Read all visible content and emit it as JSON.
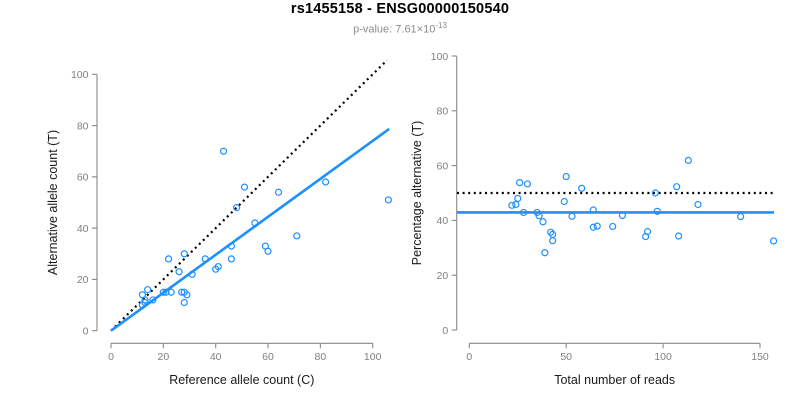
{
  "header": {
    "title": "rs1455158 - ENSG00000150540",
    "pvalue_prefix": "p-value: 7.61×10",
    "pvalue_exponent": "-13"
  },
  "colors": {
    "accent_blue": "#1E90FF",
    "axis_gray": "#888888",
    "tick_text_gray": "#808080",
    "axis_title_dark": "#1a1a1a",
    "subtitle_gray": "#8c8c8c",
    "dotted_black": "#000000"
  },
  "chart_data": [
    {
      "type": "scatter",
      "xlabel": "Reference allele count (C)",
      "ylabel": "Alternative allele count (T)",
      "x_ticks": [
        0,
        20,
        40,
        60,
        80,
        100
      ],
      "y_ticks": [
        0,
        20,
        40,
        60,
        80,
        100
      ],
      "xlim": [
        0,
        107
      ],
      "ylim": [
        0,
        107
      ],
      "grid": false,
      "point_color": "#1E90FF",
      "points": [
        [
          12,
          14
        ],
        [
          14,
          16
        ],
        [
          13,
          12
        ],
        [
          12,
          10
        ],
        [
          13,
          11
        ],
        [
          16,
          12
        ],
        [
          20,
          15
        ],
        [
          21,
          15
        ],
        [
          23,
          15
        ],
        [
          27,
          15
        ],
        [
          28,
          15
        ],
        [
          29,
          14
        ],
        [
          28,
          11
        ],
        [
          22,
          28
        ],
        [
          26,
          23
        ],
        [
          28,
          30
        ],
        [
          31,
          22
        ],
        [
          36,
          28
        ],
        [
          40,
          24
        ],
        [
          41,
          25
        ],
        [
          43,
          70
        ],
        [
          46,
          28
        ],
        [
          46,
          33
        ],
        [
          48,
          48
        ],
        [
          51,
          56
        ],
        [
          55,
          42
        ],
        [
          59,
          33
        ],
        [
          60,
          31
        ],
        [
          64,
          54
        ],
        [
          71,
          37
        ],
        [
          82,
          58
        ],
        [
          106,
          51
        ]
      ],
      "lines": [
        {
          "name": "identity-line",
          "style": "dotted",
          "color": "#000000",
          "x1": 0,
          "y1": 0,
          "x2": 105.5,
          "y2": 105.5
        },
        {
          "name": "regression-line",
          "style": "solid",
          "color": "#1E90FF",
          "x1": 0,
          "y1": 0,
          "x2": 106.3,
          "y2": 78.7
        }
      ]
    },
    {
      "type": "scatter",
      "xlabel": "Total number of reads",
      "ylabel": "Percentage alternative (T)",
      "x_ticks": [
        0,
        50,
        100,
        150
      ],
      "y_ticks": [
        0,
        20,
        40,
        60,
        80,
        100
      ],
      "xlim": [
        0,
        158
      ],
      "ylim": [
        0,
        100
      ],
      "grid": false,
      "point_color": "#1E90FF",
      "points": [
        [
          26,
          53.8
        ],
        [
          30,
          53.3
        ],
        [
          25,
          48.0
        ],
        [
          22,
          45.5
        ],
        [
          24,
          45.8
        ],
        [
          28,
          42.9
        ],
        [
          35,
          42.9
        ],
        [
          36,
          41.7
        ],
        [
          38,
          39.5
        ],
        [
          42,
          35.7
        ],
        [
          43,
          34.9
        ],
        [
          43,
          32.6
        ],
        [
          39,
          28.2
        ],
        [
          50,
          56.0
        ],
        [
          49,
          46.9
        ],
        [
          58,
          51.7
        ],
        [
          53,
          41.5
        ],
        [
          64,
          43.8
        ],
        [
          64,
          37.5
        ],
        [
          66,
          37.9
        ],
        [
          113,
          61.9
        ],
        [
          74,
          37.8
        ],
        [
          79,
          41.8
        ],
        [
          96,
          50.0
        ],
        [
          107,
          52.3
        ],
        [
          97,
          43.3
        ],
        [
          92,
          35.9
        ],
        [
          91,
          34.1
        ],
        [
          118,
          45.8
        ],
        [
          108,
          34.3
        ],
        [
          140,
          41.4
        ],
        [
          157,
          32.5
        ]
      ],
      "lines": [
        {
          "name": "fifty-percent-line",
          "style": "dotted",
          "color": "#000000",
          "orientation": "horizontal",
          "y": 50
        },
        {
          "name": "mean-line",
          "style": "solid",
          "color": "#1E90FF",
          "orientation": "horizontal",
          "y": 42.9
        }
      ]
    }
  ]
}
